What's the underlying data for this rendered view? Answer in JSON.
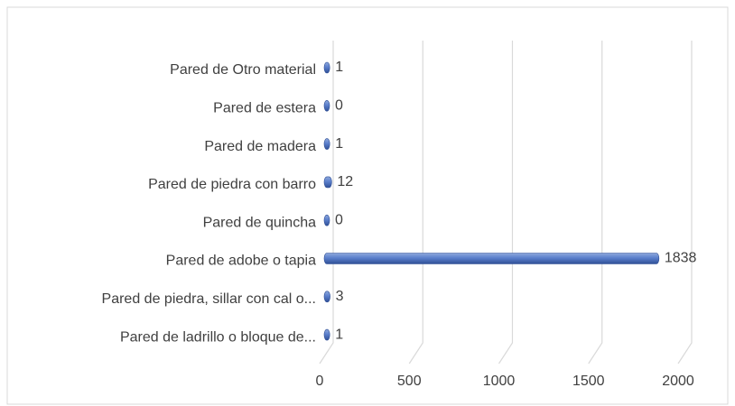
{
  "chart_data": {
    "type": "bar",
    "orientation": "horizontal",
    "categories": [
      "Pared de Otro material",
      "Pared de estera",
      "Pared de madera",
      "Pared de piedra con barro",
      "Pared de quincha",
      "Pared de adobe o tapia",
      "Pared de piedra, sillar con cal o...",
      "Pared de ladrillo o bloque de..."
    ],
    "values": [
      1,
      0,
      1,
      12,
      0,
      1838,
      3,
      1
    ],
    "color": "#4472c4",
    "xlim": [
      0,
      2000
    ],
    "xticks": [
      0,
      500,
      1000,
      1500,
      2000
    ],
    "grid": true
  }
}
